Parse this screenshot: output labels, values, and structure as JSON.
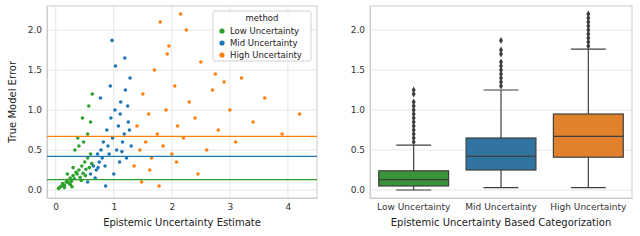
{
  "chart_data": [
    {
      "type": "scatter",
      "x_label": "Epistemic Uncertainty Estimate",
      "y_label": "True Model Error",
      "legend_title": "method",
      "legend": "upper right",
      "grid": true,
      "marker": "circle",
      "xlim": [
        -0.15,
        4.5
      ],
      "xticks": [
        0,
        1,
        2,
        3,
        4
      ],
      "ylim": [
        -0.1,
        2.3
      ],
      "yticks": [
        {
          "value": 0,
          "label": "0.0"
        },
        {
          "value": 0.5,
          "label": "0.5"
        },
        {
          "value": 1,
          "label": "1.0"
        },
        {
          "value": 1.5,
          "label": "1.5"
        },
        {
          "value": 2,
          "label": "2.0"
        }
      ],
      "series": [
        {
          "name": "Low Uncertainty",
          "color": "#2ca02c",
          "median": 0.13,
          "x": [
            0.05,
            0.08,
            0.1,
            0.12,
            0.15,
            0.18,
            0.2,
            0.22,
            0.25,
            0.27,
            0.3,
            0.32,
            0.35,
            0.37,
            0.4,
            0.42,
            0.45,
            0.47,
            0.5,
            0.52,
            0.55,
            0.58,
            0.6,
            0.62,
            0.15,
            0.25,
            0.33,
            0.4,
            0.48,
            0.55,
            0.6,
            0.3,
            0.44,
            0.51,
            0.38,
            0.2,
            0.28,
            0.46,
            0.57,
            0.63
          ],
          "values": [
            0.02,
            0.04,
            0.05,
            0.08,
            0.06,
            0.1,
            0.12,
            0.09,
            0.15,
            0.11,
            0.18,
            0.14,
            0.22,
            0.2,
            0.25,
            0.16,
            0.3,
            0.21,
            0.35,
            0.26,
            0.4,
            0.28,
            0.45,
            0.33,
            0.03,
            0.07,
            0.5,
            0.55,
            0.6,
            0.7,
            0.85,
            0.28,
            0.12,
            0.18,
            0.65,
            0.2,
            0.04,
            0.9,
            1.05,
            1.2
          ]
        },
        {
          "name": "Mid Uncertainty",
          "color": "#1f77b4",
          "median": 0.42,
          "x": [
            0.55,
            0.6,
            0.65,
            0.7,
            0.72,
            0.75,
            0.78,
            0.8,
            0.82,
            0.85,
            0.88,
            0.9,
            0.92,
            0.95,
            0.98,
            1.0,
            1.02,
            1.05,
            1.08,
            1.1,
            1.12,
            1.15,
            1.18,
            1.2,
            1.22,
            1.25,
            1.28,
            1.3,
            0.68,
            0.77,
            0.86,
            0.94,
            1.03,
            1.11,
            1.19,
            1.27,
            0.73,
            0.97,
            1.14,
            1.24
          ],
          "values": [
            0.1,
            0.2,
            0.3,
            0.25,
            0.45,
            0.35,
            0.5,
            0.4,
            0.6,
            0.3,
            0.75,
            0.55,
            0.45,
            0.9,
            0.65,
            0.2,
            1.0,
            0.5,
            0.8,
            0.35,
            1.1,
            0.6,
            0.7,
            1.25,
            0.4,
            0.85,
            1.4,
            0.55,
            0.15,
            1.15,
            0.05,
            1.3,
            1.55,
            0.95,
            1.65,
            0.75,
            0.28,
            1.87,
            0.48,
            1.05
          ]
        },
        {
          "name": "High Uncertainty",
          "color": "#ff7f0e",
          "median": 0.67,
          "x": [
            1.35,
            1.4,
            1.45,
            1.5,
            1.55,
            1.6,
            1.65,
            1.7,
            1.75,
            1.8,
            1.85,
            1.9,
            1.95,
            2.0,
            2.05,
            2.1,
            2.15,
            2.2,
            2.3,
            2.4,
            2.5,
            2.6,
            2.7,
            2.8,
            2.9,
            3.0,
            3.1,
            3.2,
            3.4,
            3.6,
            3.9,
            4.2,
            1.48,
            1.62,
            1.78,
            1.92,
            2.08,
            2.25,
            2.45,
            2.75
          ],
          "values": [
            0.3,
            0.8,
            0.5,
            1.2,
            0.6,
            0.95,
            0.4,
            1.5,
            0.7,
            2.1,
            0.55,
            1.0,
            1.8,
            0.45,
            1.3,
            0.8,
            2.2,
            0.65,
            1.1,
            0.9,
            1.6,
            0.5,
            1.25,
            0.75,
            1.35,
            1.0,
            0.6,
            1.4,
            0.85,
            1.15,
            0.7,
            0.95,
            0.1,
            0.25,
            0.05,
            1.7,
            0.35,
            2.0,
            0.2,
            1.45
          ]
        }
      ]
    },
    {
      "type": "box",
      "x_label": "Epistemic Uncertainty Based Categorization",
      "grid": true,
      "categories": [
        "Low Uncertainty",
        "Mid Uncertainty",
        "High Uncertainty"
      ],
      "colors": [
        "#3a923a",
        "#3274a1",
        "#e1812c"
      ],
      "ylim": [
        -0.1,
        2.3
      ],
      "yticks": [
        {
          "value": 0,
          "label": "0.0"
        },
        {
          "value": 0.5,
          "label": "0.5"
        },
        {
          "value": 1,
          "label": "1.0"
        },
        {
          "value": 1.5,
          "label": "1.5"
        },
        {
          "value": 2,
          "label": "2.0"
        }
      ],
      "boxes": [
        {
          "min": 0.0,
          "q1": 0.05,
          "median": 0.13,
          "q3": 0.24,
          "max": 0.56,
          "outliers": [
            0.6,
            0.65,
            0.7,
            0.75,
            0.8,
            0.85,
            0.9,
            0.95,
            1.0,
            1.05,
            1.1,
            1.2,
            1.25
          ]
        },
        {
          "min": 0.03,
          "q1": 0.25,
          "median": 0.42,
          "q3": 0.65,
          "max": 1.25,
          "outliers": [
            1.3,
            1.35,
            1.4,
            1.45,
            1.5,
            1.55,
            1.6,
            1.7,
            1.75,
            1.87
          ]
        },
        {
          "min": 0.03,
          "q1": 0.41,
          "median": 0.67,
          "q3": 0.95,
          "max": 1.76,
          "outliers": [
            1.8,
            1.85,
            1.9,
            1.95,
            2.0,
            2.05,
            2.1,
            2.15,
            2.2
          ]
        }
      ]
    }
  ]
}
